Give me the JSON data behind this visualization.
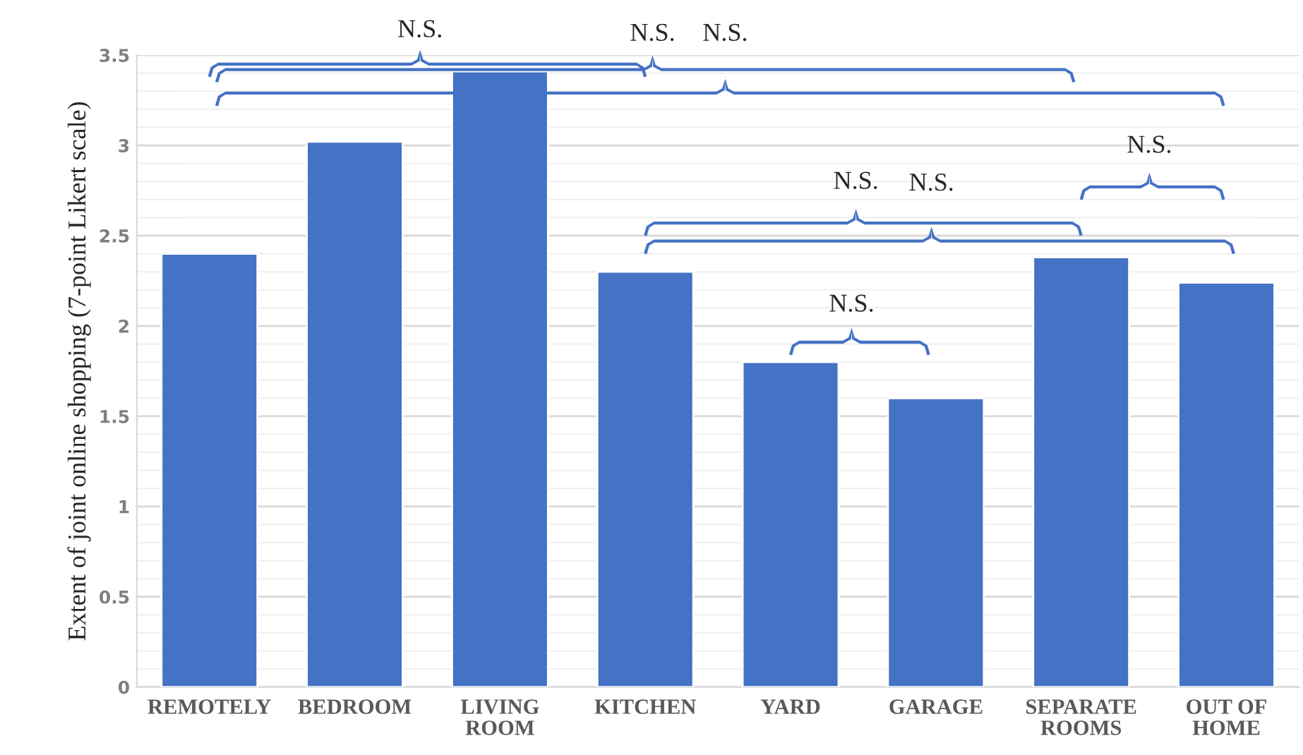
{
  "chart_data": {
    "type": "bar",
    "ylabel": "Extent of joint online shopping (7-point Likert scale)",
    "categories": [
      "REMOTELY",
      "BEDROOM",
      "LIVING\nROOM",
      "KITCHEN",
      "YARD",
      "GARAGE",
      "SEPARATE\nROOMS",
      "OUT OF\nHOME"
    ],
    "values": [
      2.4,
      3.02,
      3.41,
      2.3,
      1.8,
      1.6,
      2.38,
      2.24
    ],
    "color": "#4472c4",
    "ylim": [
      0,
      3.5
    ],
    "yticks": [
      0,
      0.5,
      1,
      1.5,
      2,
      2.5,
      3,
      3.5
    ],
    "grid": "y",
    "annotations": [
      "N.S.",
      "N.S.",
      "N.S.",
      "N.S.",
      "N.S.",
      "N.S.",
      "N.S."
    ]
  }
}
